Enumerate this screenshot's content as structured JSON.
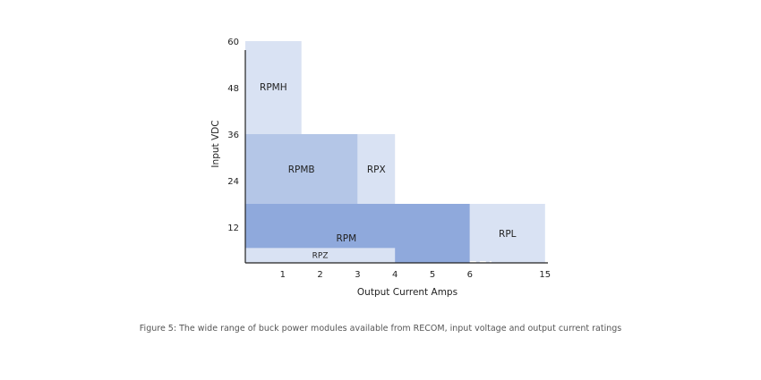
{
  "caption": "Figure 5: The wide range of buck power modules available from RECOM, input voltage and output current ratings",
  "chart_data": {
    "type": "area",
    "xlabel": "Output Current Amps",
    "ylabel": "Input VDC",
    "x_ticks": [
      "1",
      "2",
      "3",
      "4",
      "5",
      "6",
      "15"
    ],
    "y_ticks": [
      12,
      24,
      36,
      48,
      60
    ],
    "ylim": [
      0,
      60
    ],
    "regions": [
      {
        "label": "RPM",
        "x": [
          0,
          6
        ],
        "y": [
          0,
          18
        ],
        "color": "#8fa9dc"
      },
      {
        "label": "RPL",
        "x": [
          6,
          15
        ],
        "y": [
          0,
          18
        ],
        "color": "#d9e2f3"
      },
      {
        "label": "RPMB",
        "x": [
          0,
          3
        ],
        "y": [
          18,
          36
        ],
        "color": "#b4c6e7"
      },
      {
        "label": "RPX",
        "x": [
          3,
          4
        ],
        "y": [
          18,
          36
        ],
        "color": "#d9e2f3"
      },
      {
        "label": "RPMH",
        "x": [
          0,
          1.5
        ],
        "y": [
          36,
          60
        ],
        "color": "#d9e2f3"
      },
      {
        "label": "RPZ",
        "x": [
          0,
          4
        ],
        "y": [
          0,
          5
        ],
        "color": "#d9e2f3"
      }
    ],
    "grid": false
  }
}
